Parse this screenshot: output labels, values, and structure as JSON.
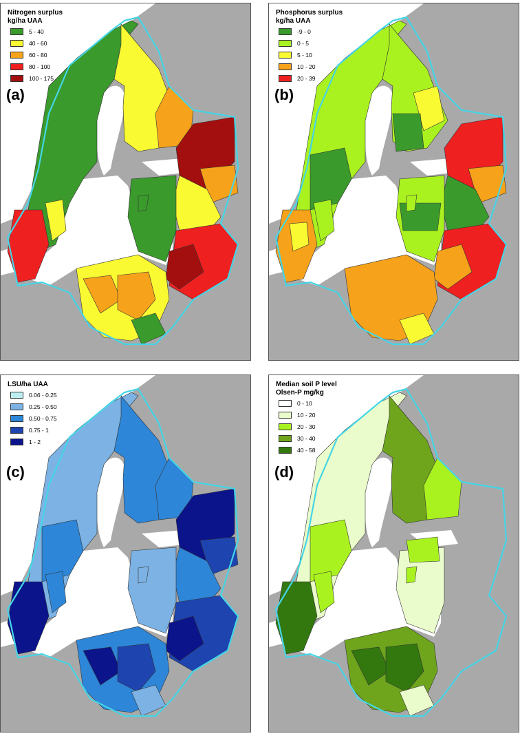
{
  "panels": {
    "a": {
      "label": "(a)",
      "title_line1": "Nitrogen surplus",
      "title_line2": "kg/ha UAA",
      "legend": [
        {
          "label": "5 - 40",
          "color": "#3a9a2c"
        },
        {
          "label": "40 - 60",
          "color": "#fafa33"
        },
        {
          "label": "60 - 80",
          "color": "#f6a21a"
        },
        {
          "label": "80 - 100",
          "color": "#ee2020"
        },
        {
          "label": "100 - 175",
          "color": "#a30f0f"
        }
      ]
    },
    "b": {
      "label": "(b)",
      "title_line1": "Phosphorus surplus",
      "title_line2": "kg/ha UAA",
      "legend": [
        {
          "label": "-9 - 0",
          "color": "#3a9a2c"
        },
        {
          "label": "0 - 5",
          "color": "#aaf21f"
        },
        {
          "label": "5 - 10",
          "color": "#fafa33"
        },
        {
          "label": "10 - 20",
          "color": "#f6a21a"
        },
        {
          "label": "20 - 39",
          "color": "#ee2020"
        }
      ]
    },
    "c": {
      "label": "(c)",
      "title_line1": "LSU/ha UAA",
      "title_line2": "",
      "legend": [
        {
          "label": "0.06 - 0.25",
          "color": "#bdeef2"
        },
        {
          "label": "0.25 - 0.50",
          "color": "#7cb2e4"
        },
        {
          "label": "0.50 - 0.75",
          "color": "#2d86d8"
        },
        {
          "label": "0.75 - 1",
          "color": "#1e44b0"
        },
        {
          "label": "1 - 2",
          "color": "#0b148a"
        }
      ]
    },
    "d": {
      "label": "(d)",
      "title_line1": "Median soil P level",
      "title_line2": "Olsen-P mg/kg",
      "legend": [
        {
          "label": "0 - 10",
          "color": "#ffffff"
        },
        {
          "label": "10 - 20",
          "color": "#eafccb"
        },
        {
          "label": "20 - 30",
          "color": "#aaf21f"
        },
        {
          "label": "30 - 40",
          "color": "#6ea51c"
        },
        {
          "label": "40 - 58",
          "color": "#33780f"
        }
      ]
    }
  },
  "colors": {
    "land": "#a9a9a9",
    "sea": "#ffffff",
    "catchment_boundary": "#45d5e6",
    "borders": "#333333"
  }
}
